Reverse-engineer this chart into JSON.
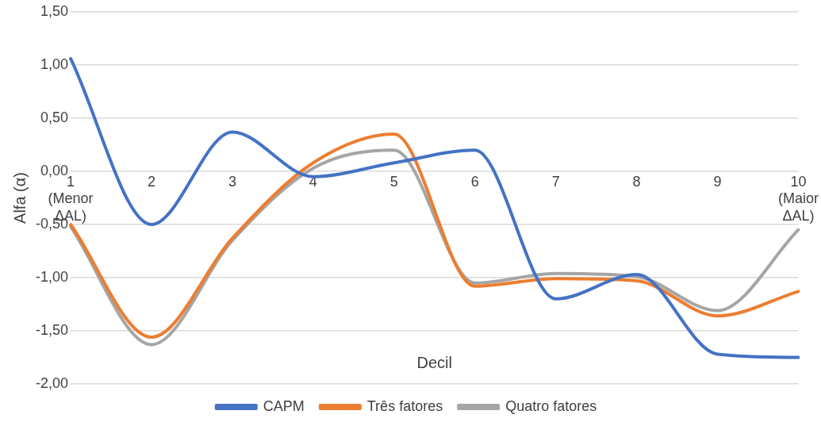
{
  "chart_data": {
    "type": "line",
    "xlabel": "Decil",
    "ylabel": "Alfa (α)",
    "categories": [
      "1 (Menor ΔAL)",
      "2",
      "3",
      "4",
      "5",
      "6",
      "7",
      "8",
      "9",
      "10 (Maior ΔAL)"
    ],
    "series": [
      {
        "name": "CAPM",
        "color": "#4472c4",
        "values": [
          1.06,
          -0.5,
          0.37,
          -0.05,
          0.08,
          0.2,
          -1.2,
          -0.97,
          -1.72,
          -1.75
        ]
      },
      {
        "name": "Três fatores",
        "color": "#ed7d31",
        "values": [
          -0.5,
          -1.56,
          -0.63,
          0.08,
          0.35,
          -1.08,
          -1.01,
          -1.03,
          -1.36,
          -1.13
        ]
      },
      {
        "name": "Quatro fatores",
        "color": "#a5a5a5",
        "values": [
          -0.52,
          -1.63,
          -0.65,
          0.03,
          0.2,
          -1.05,
          -0.96,
          -0.99,
          -1.31,
          -0.55
        ]
      }
    ],
    "ylim": [
      -2,
      1.5
    ],
    "yticks": [
      {
        "value": -2,
        "label": "-2,00"
      },
      {
        "value": -1.5,
        "label": "-1,50"
      },
      {
        "value": -1,
        "label": "-1,00"
      },
      {
        "value": -0.5,
        "label": "-0,50"
      },
      {
        "value": 0,
        "label": "0,00"
      },
      {
        "value": 0.5,
        "label": "0,50"
      },
      {
        "value": 1,
        "label": "1,00"
      },
      {
        "value": 1.5,
        "label": "1,50"
      }
    ],
    "grid": "y",
    "legend": "bottom",
    "marker": "none",
    "line_style": "solid"
  }
}
